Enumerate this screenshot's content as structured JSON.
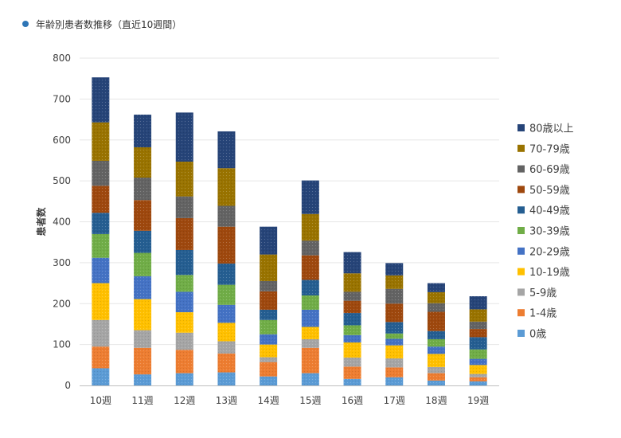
{
  "header": {
    "title": "年齢別患者数推移（直近10週間）",
    "bullet_color": "#2e75b6"
  },
  "chart_data": {
    "type": "bar",
    "stacked": true,
    "title": "年齢別患者数推移（直近10週間）",
    "xlabel": "",
    "ylabel": "患者数",
    "ylim": [
      0,
      800
    ],
    "yticks": [
      0,
      100,
      200,
      300,
      400,
      500,
      600,
      700,
      800
    ],
    "grid": true,
    "legend_position": "right",
    "categories": [
      "10週",
      "11週",
      "12週",
      "13週",
      "14週",
      "15週",
      "16週",
      "17週",
      "18週",
      "19週"
    ],
    "series": [
      {
        "name": "0歳",
        "color": "#5b9bd5",
        "values": [
          42,
          27,
          30,
          32,
          22,
          30,
          16,
          20,
          12,
          10
        ]
      },
      {
        "name": "1-4歳",
        "color": "#ed7d31",
        "values": [
          53,
          65,
          57,
          46,
          35,
          62,
          30,
          24,
          18,
          10
        ]
      },
      {
        "name": "5-9歳",
        "color": "#a5a5a5",
        "values": [
          65,
          43,
          42,
          30,
          12,
          21,
          22,
          22,
          15,
          8
        ]
      },
      {
        "name": "10-19歳",
        "color": "#ffc000",
        "values": [
          90,
          76,
          50,
          45,
          31,
          30,
          37,
          32,
          32,
          22
        ]
      },
      {
        "name": "20-29歳",
        "color": "#4472c4",
        "values": [
          62,
          56,
          50,
          44,
          25,
          42,
          18,
          16,
          18,
          15
        ]
      },
      {
        "name": "30-39歳",
        "color": "#70ad47",
        "values": [
          58,
          57,
          41,
          49,
          35,
          35,
          24,
          13,
          18,
          23
        ]
      },
      {
        "name": "40-49歳",
        "color": "#255e91",
        "values": [
          52,
          54,
          61,
          52,
          25,
          38,
          30,
          28,
          20,
          30
        ]
      },
      {
        "name": "50-59歳",
        "color": "#9e480e",
        "values": [
          66,
          75,
          78,
          90,
          45,
          60,
          30,
          45,
          47,
          20
        ]
      },
      {
        "name": "60-69歳",
        "color": "#636363",
        "values": [
          61,
          55,
          53,
          51,
          25,
          36,
          22,
          36,
          21,
          18
        ]
      },
      {
        "name": "70-79歳",
        "color": "#997300",
        "values": [
          94,
          74,
          85,
          92,
          65,
          65,
          45,
          33,
          27,
          30
        ]
      },
      {
        "name": "80歳以上",
        "color": "#264478",
        "values": [
          110,
          80,
          120,
          90,
          68,
          82,
          52,
          30,
          22,
          32
        ]
      }
    ]
  }
}
